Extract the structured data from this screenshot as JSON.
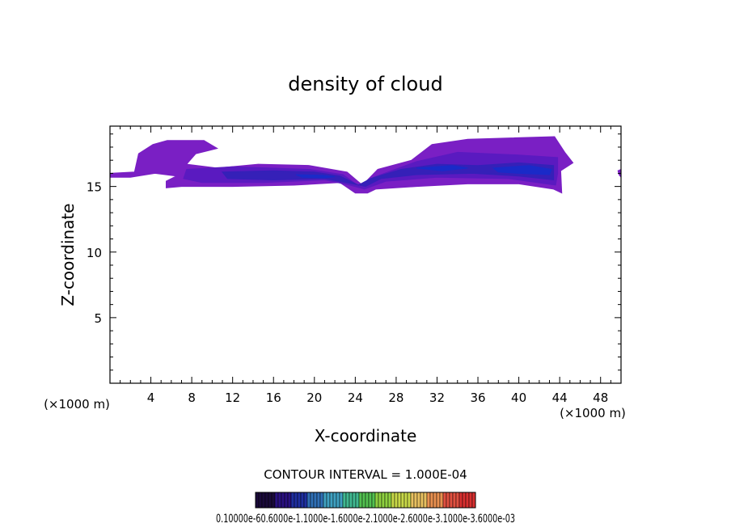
{
  "chart_data": {
    "type": "heatmap",
    "title": "density of cloud",
    "xlabel": "X-coordinate",
    "ylabel": "Z-coordinate",
    "x_unit": "(×1000 m)",
    "x_unit_right": "(×1000 m)",
    "xlim": [
      0,
      50
    ],
    "ylim": [
      0,
      19.6
    ],
    "x_ticks": [
      4,
      8,
      12,
      16,
      20,
      24,
      28,
      32,
      36,
      40,
      44,
      48
    ],
    "x_tick_labels": [
      "4",
      "8",
      "12",
      "16",
      "20",
      "24",
      "28",
      "32",
      "36",
      "40",
      "44",
      "48"
    ],
    "y_ticks": [
      5,
      10,
      15
    ],
    "y_tick_labels": [
      "5",
      "10",
      "15"
    ],
    "x_minor_step": 1,
    "y_minor_step": 1,
    "contour_interval_text": "CONTOUR INTERVAL = 1.000E-04",
    "colorbar_labels_text": "0.10000e-60.6000e-1.1000e-1.6000e-2.1000e-2.6000e-3.1000e-3.6000e-03",
    "colorbar_colors": [
      "#1a0a3a",
      "#2a1080",
      "#1f2fa0",
      "#2f6fb5",
      "#3fa0c0",
      "#40b890",
      "#52c050",
      "#8ed040",
      "#c8d848",
      "#e8c060",
      "#e89050",
      "#e05040",
      "#d83030"
    ],
    "regions": [
      {
        "level": "low",
        "color": "#7a1fc4",
        "outline_xz": [
          [
            0,
            16.0
          ],
          [
            2.4,
            16.1
          ],
          [
            2.8,
            17.5
          ],
          [
            4.2,
            18.2
          ],
          [
            5.6,
            18.5
          ],
          [
            9.2,
            18.5
          ],
          [
            10.5,
            17.9
          ],
          [
            8.4,
            17.5
          ],
          [
            7.5,
            16.7
          ],
          [
            10.5,
            16.4
          ],
          [
            14.5,
            16.7
          ],
          [
            19.5,
            16.6
          ],
          [
            23.2,
            16.1
          ],
          [
            24.7,
            15.1
          ],
          [
            26.2,
            16.3
          ],
          [
            29.5,
            17.0
          ],
          [
            31.5,
            18.2
          ],
          [
            35.0,
            18.6
          ],
          [
            43.5,
            18.8
          ],
          [
            44.5,
            17.6
          ],
          [
            45.3,
            16.8
          ],
          [
            44.1,
            16.2
          ],
          [
            44.2,
            14.5
          ],
          [
            43.4,
            14.8
          ],
          [
            40.0,
            15.2
          ],
          [
            35.0,
            15.2
          ],
          [
            30.0,
            15.0
          ],
          [
            26.0,
            14.8
          ],
          [
            25.2,
            14.5
          ],
          [
            24.0,
            14.5
          ],
          [
            22.5,
            15.3
          ],
          [
            18.0,
            15.1
          ],
          [
            12.0,
            15.0
          ],
          [
            7.0,
            15.0
          ],
          [
            5.5,
            14.9
          ],
          [
            5.5,
            15.4
          ],
          [
            6.5,
            15.8
          ],
          [
            4.4,
            16.0
          ],
          [
            2.0,
            15.7
          ],
          [
            0,
            15.7
          ]
        ]
      },
      {
        "level": "mid",
        "color": "#5a1ac0",
        "outline_xz": [
          [
            7.5,
            16.3
          ],
          [
            12.0,
            16.5
          ],
          [
            19.5,
            16.3
          ],
          [
            22.8,
            15.9
          ],
          [
            24.4,
            15.0
          ],
          [
            25.8,
            15.7
          ],
          [
            30.0,
            16.9
          ],
          [
            34.0,
            17.6
          ],
          [
            40.0,
            17.4
          ],
          [
            43.8,
            17.2
          ],
          [
            43.8,
            16.0
          ],
          [
            43.6,
            15.1
          ],
          [
            39.0,
            15.6
          ],
          [
            32.0,
            15.7
          ],
          [
            27.0,
            15.4
          ],
          [
            24.9,
            14.8
          ],
          [
            23.5,
            15.1
          ],
          [
            21.0,
            15.5
          ],
          [
            15.0,
            15.3
          ],
          [
            9.0,
            15.3
          ],
          [
            7.2,
            15.6
          ]
        ]
      },
      {
        "level": "high",
        "color": "#3520b8",
        "outline_xz": [
          [
            11.0,
            16.1
          ],
          [
            16.0,
            16.2
          ],
          [
            20.0,
            16.1
          ],
          [
            22.5,
            15.8
          ],
          [
            24.3,
            15.1
          ],
          [
            25.5,
            15.6
          ],
          [
            28.5,
            16.3
          ],
          [
            32.0,
            16.7
          ],
          [
            36.0,
            16.6
          ],
          [
            40.0,
            16.8
          ],
          [
            43.4,
            16.6
          ],
          [
            43.4,
            15.5
          ],
          [
            40.0,
            15.8
          ],
          [
            35.5,
            16.0
          ],
          [
            30.0,
            15.9
          ],
          [
            26.5,
            15.6
          ],
          [
            25.0,
            15.0
          ],
          [
            23.8,
            15.2
          ],
          [
            21.0,
            15.6
          ],
          [
            16.0,
            15.5
          ],
          [
            11.5,
            15.6
          ]
        ]
      },
      {
        "level": "peak",
        "color": "#1a2ac8",
        "outline_xz": [
          [
            18.2,
            15.9
          ],
          [
            20.8,
            15.85
          ],
          [
            22.0,
            15.75
          ],
          [
            21.0,
            15.65
          ],
          [
            18.8,
            15.7
          ]
        ]
      },
      {
        "level": "peak",
        "color": "#1a2ac8",
        "outline_xz": [
          [
            30.0,
            16.4
          ],
          [
            33.5,
            16.6
          ],
          [
            35.0,
            16.4
          ],
          [
            32.5,
            16.2
          ]
        ]
      },
      {
        "level": "peak",
        "color": "#1a2ac8",
        "outline_xz": [
          [
            37.5,
            16.4
          ],
          [
            41.0,
            16.6
          ],
          [
            43.2,
            16.3
          ],
          [
            43.0,
            15.9
          ],
          [
            40.0,
            16.0
          ],
          [
            38.0,
            16.1
          ]
        ]
      },
      {
        "level": "low",
        "color": "#7a1fc4",
        "outline_xz": [
          [
            49.8,
            15.9
          ],
          [
            50,
            15.7
          ],
          [
            50,
            16.3
          ],
          [
            49.7,
            16.2
          ]
        ]
      }
    ]
  }
}
